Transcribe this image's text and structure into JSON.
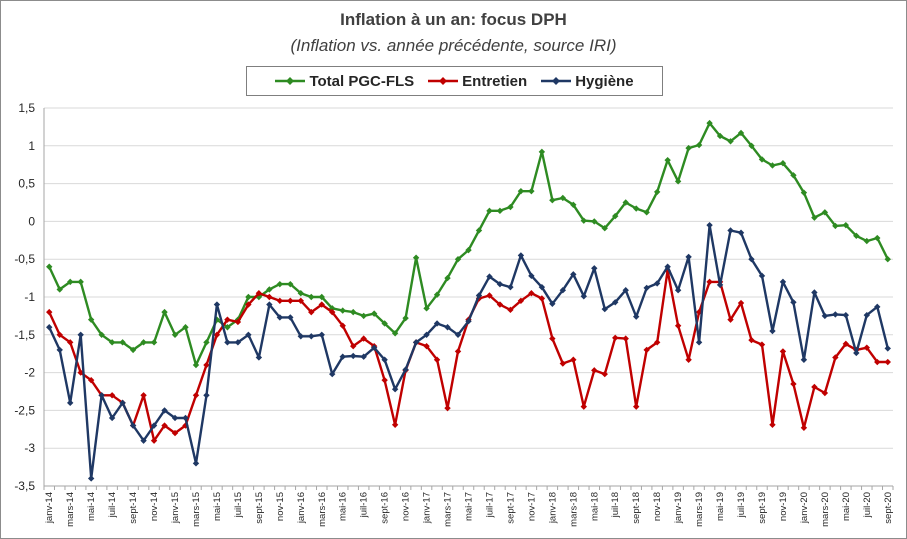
{
  "chart_data": {
    "type": "line",
    "title": "Inflation à un an: focus DPH",
    "subtitle": "(Inflation vs. année précédente, source IRI)",
    "ylim": [
      -3.5,
      1.5
    ],
    "ytick_labels": [
      "1,5",
      "1",
      "0,5",
      "0",
      "-0,5",
      "-1",
      "-1,5",
      "-2",
      "-2,5",
      "-3",
      "-3,5"
    ],
    "ytick_values": [
      1.5,
      1,
      0.5,
      0,
      -0.5,
      -1,
      -1.5,
      -2,
      -2.5,
      -3,
      -3.5
    ],
    "grid": "horizontal",
    "legend": "top-center",
    "x": [
      "janv-14",
      "févr-14",
      "mars-14",
      "avr-14",
      "mai-14",
      "juin-14",
      "juil-14",
      "août-14",
      "sept-14",
      "oct-14",
      "nov-14",
      "déc-14",
      "janv-15",
      "févr-15",
      "mars-15",
      "avr-15",
      "mai-15",
      "juin-15",
      "juil-15",
      "août-15",
      "sept-15",
      "oct-15",
      "nov-15",
      "déc-15",
      "janv-16",
      "févr-16",
      "mars-16",
      "avr-16",
      "mai-16",
      "juin-16",
      "juil-16",
      "août-16",
      "sept-16",
      "oct-16",
      "nov-16",
      "déc-16",
      "janv-17",
      "févr-17",
      "mars-17",
      "avr-17",
      "mai-17",
      "juin-17",
      "juil-17",
      "août-17",
      "sept-17",
      "oct-17",
      "nov-17",
      "déc-17",
      "janv-18",
      "févr-18",
      "mars-18",
      "avr-18",
      "mai-18",
      "juin-18",
      "juil-18",
      "août-18",
      "sept-18",
      "oct-18",
      "nov-18",
      "déc-18",
      "janv-19",
      "févr-19",
      "mars-19",
      "avr-19",
      "mai-19",
      "juin-19",
      "juil-19",
      "août-19",
      "sept-19",
      "oct-19",
      "nov-19",
      "déc-19",
      "janv-20",
      "févr-20",
      "mars-20",
      "avr-20",
      "mai-20",
      "juin-20",
      "juil-20",
      "août-20",
      "sept-20"
    ],
    "xtick_labels": [
      "janv-14",
      "mars-14",
      "mai-14",
      "juil-14",
      "sept-14",
      "nov-14",
      "janv-15",
      "mars-15",
      "mai-15",
      "juil-15",
      "sept-15",
      "nov-15",
      "janv-16",
      "mars-16",
      "mai-16",
      "juil-16",
      "sept-16",
      "nov-16",
      "janv-17",
      "mars-17",
      "mai-17",
      "juil-17",
      "sept-17",
      "nov-17",
      "janv-18",
      "mars-18",
      "mai-18",
      "juil-18",
      "sept-18",
      "nov-18",
      "janv-19",
      "mars-19",
      "mai-19",
      "juil-19",
      "sept-19",
      "nov-19",
      "janv-20",
      "mars-20",
      "mai-20",
      "juil-20",
      "sept-20"
    ],
    "series": [
      {
        "name": "Total PGC-FLS",
        "color": "#2e8b22",
        "values": [
          -0.6,
          -0.9,
          -0.8,
          -0.8,
          -1.3,
          -1.5,
          -1.6,
          -1.6,
          -1.7,
          -1.6,
          -1.6,
          -1.2,
          -1.5,
          -1.4,
          -1.9,
          -1.6,
          -1.3,
          -1.4,
          -1.3,
          -1.0,
          -1.0,
          -0.9,
          -0.83,
          -0.83,
          -0.95,
          -1.0,
          -1.0,
          -1.15,
          -1.18,
          -1.2,
          -1.25,
          -1.22,
          -1.35,
          -1.48,
          -1.28,
          -0.48,
          -1.15,
          -0.97,
          -0.75,
          -0.5,
          -0.38,
          -0.12,
          0.14,
          0.14,
          0.19,
          0.4,
          0.4,
          0.92,
          0.28,
          0.31,
          0.22,
          0.01,
          0.0,
          -0.09,
          0.07,
          0.25,
          0.17,
          0.12,
          0.39,
          0.81,
          0.53,
          0.97,
          1.01,
          1.3,
          1.13,
          1.06,
          1.17,
          1.0,
          0.82,
          0.74,
          0.77,
          0.61,
          0.38,
          0.05,
          0.12,
          -0.06,
          -0.05,
          -0.19,
          -0.26,
          -0.22,
          -0.5
        ]
      },
      {
        "name": "Entretien",
        "color": "#c00000",
        "values": [
          -1.2,
          -1.5,
          -1.6,
          -2.0,
          -2.1,
          -2.3,
          -2.3,
          -2.4,
          -2.7,
          -2.3,
          -2.9,
          -2.7,
          -2.8,
          -2.7,
          -2.3,
          -1.9,
          -1.5,
          -1.3,
          -1.33,
          -1.1,
          -0.95,
          -1.0,
          -1.05,
          -1.05,
          -1.05,
          -1.2,
          -1.1,
          -1.2,
          -1.38,
          -1.65,
          -1.55,
          -1.65,
          -2.1,
          -2.69,
          -1.97,
          -1.6,
          -1.65,
          -1.83,
          -2.47,
          -1.72,
          -1.3,
          -1.02,
          -0.98,
          -1.1,
          -1.17,
          -1.05,
          -0.95,
          -1.02,
          -1.55,
          -1.88,
          -1.83,
          -2.45,
          -1.97,
          -2.02,
          -1.54,
          -1.55,
          -2.45,
          -1.7,
          -1.6,
          -0.65,
          -1.38,
          -1.83,
          -1.2,
          -0.8,
          -0.8,
          -1.3,
          -1.08,
          -1.57,
          -1.63,
          -2.69,
          -1.72,
          -2.15,
          -2.73,
          -2.19,
          -2.27,
          -1.8,
          -1.62,
          -1.7,
          -1.67,
          -1.86,
          -1.86
        ]
      },
      {
        "name": "Hygiène",
        "color": "#1f3864",
        "values": [
          -1.4,
          -1.7,
          -2.4,
          -1.5,
          -3.4,
          -2.3,
          -2.6,
          -2.4,
          -2.7,
          -2.9,
          -2.7,
          -2.5,
          -2.6,
          -2.6,
          -3.2,
          -2.3,
          -1.1,
          -1.6,
          -1.6,
          -1.5,
          -1.8,
          -1.1,
          -1.27,
          -1.27,
          -1.52,
          -1.52,
          -1.5,
          -2.02,
          -1.79,
          -1.78,
          -1.79,
          -1.67,
          -1.83,
          -2.22,
          -1.96,
          -1.6,
          -1.5,
          -1.35,
          -1.4,
          -1.5,
          -1.32,
          -0.98,
          -0.73,
          -0.83,
          -0.87,
          -0.45,
          -0.72,
          -0.87,
          -1.09,
          -0.91,
          -0.7,
          -0.99,
          -0.62,
          -1.16,
          -1.07,
          -0.91,
          -1.26,
          -0.88,
          -0.82,
          -0.6,
          -0.91,
          -0.47,
          -1.6,
          -0.05,
          -0.84,
          -0.12,
          -0.15,
          -0.5,
          -0.72,
          -1.45,
          -0.8,
          -1.07,
          -1.83,
          -0.94,
          -1.25,
          -1.23,
          -1.24,
          -1.74,
          -1.24,
          -1.13,
          -1.68
        ]
      }
    ]
  }
}
